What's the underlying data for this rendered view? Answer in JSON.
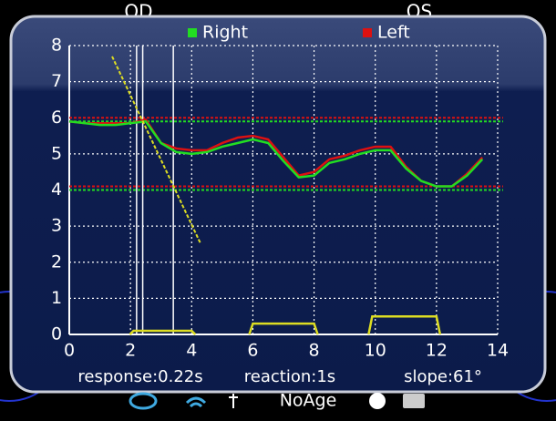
{
  "header": {
    "left_eye": "OD",
    "right_eye": "OS"
  },
  "chart_data": {
    "type": "line",
    "x": [
      0,
      0.5,
      1,
      1.5,
      2,
      2.5,
      3,
      3.5,
      4,
      4.5,
      5,
      5.5,
      6,
      6.5,
      7,
      7.5,
      8,
      8.5,
      9,
      9.5,
      10,
      10.5,
      11,
      11.5,
      12,
      12.5,
      13,
      13.5
    ],
    "series": [
      {
        "name": "Right",
        "color": "#22dd22",
        "values": [
          5.9,
          5.85,
          5.8,
          5.8,
          5.85,
          5.9,
          5.3,
          5.05,
          5.0,
          5.05,
          5.2,
          5.3,
          5.4,
          5.3,
          4.8,
          4.35,
          4.4,
          4.75,
          4.85,
          5.0,
          5.1,
          5.1,
          4.6,
          4.25,
          4.1,
          4.1,
          4.4,
          4.85
        ]
      },
      {
        "name": "Left",
        "color": "#dd1111",
        "values": [
          5.9,
          5.85,
          5.85,
          5.85,
          5.85,
          5.95,
          5.3,
          5.15,
          5.1,
          5.1,
          5.3,
          5.45,
          5.5,
          5.4,
          4.9,
          4.4,
          4.5,
          4.85,
          4.95,
          5.1,
          5.2,
          5.2,
          4.65,
          4.25,
          4.1,
          4.1,
          4.45,
          4.9
        ]
      }
    ],
    "reference_lines": [
      5.95,
      4.05
    ],
    "slope_line": {
      "color": "#dddd22",
      "x": [
        1.4,
        4.3
      ],
      "y": [
        7.7,
        2.5
      ]
    },
    "markers_x": [
      2.2,
      2.4,
      3.4
    ],
    "stimulus": {
      "color": "#dddd22",
      "pulses": [
        {
          "start": 2.1,
          "end": 4.0,
          "level": 0.1
        },
        {
          "start": 6.0,
          "end": 8.0,
          "level": 0.3
        },
        {
          "start": 9.9,
          "end": 12.0,
          "level": 0.5
        }
      ]
    },
    "xlim": [
      0,
      14
    ],
    "xticks": [
      0,
      2,
      4,
      6,
      8,
      10,
      12,
      14
    ],
    "ylim": [
      0,
      8
    ],
    "yticks": [
      0,
      1,
      2,
      3,
      4,
      5,
      6,
      7,
      8
    ],
    "grid": true
  },
  "footer": {
    "response": "response:0.22s",
    "reaction": "reaction:1s",
    "slope": "slope:61°"
  },
  "status": {
    "age": "NoAge"
  }
}
